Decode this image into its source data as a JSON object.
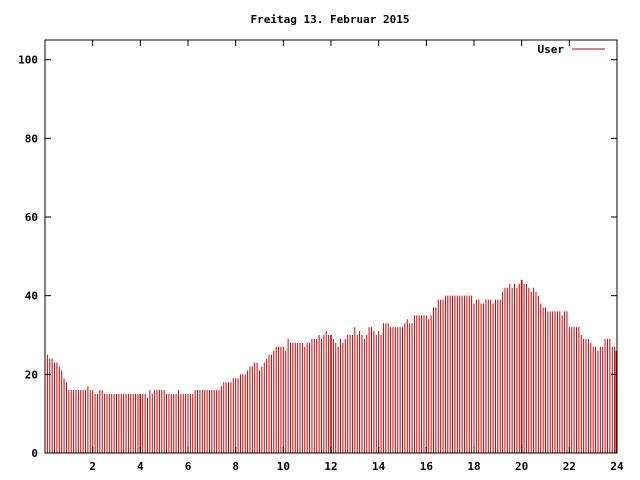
{
  "chart_data": {
    "type": "bar",
    "title": "Freitag 13. Februar 2015",
    "xlabel": "",
    "ylabel": "",
    "xlim": [
      0,
      24
    ],
    "ylim": [
      0,
      105
    ],
    "xticks": [
      2,
      4,
      6,
      8,
      10,
      12,
      14,
      16,
      18,
      20,
      22,
      24
    ],
    "yticks": [
      0,
      20,
      40,
      60,
      80,
      100
    ],
    "xtick_labels": [
      "2",
      "4",
      "6",
      "8",
      "10",
      "12",
      "14",
      "16",
      "18",
      "20",
      "22",
      "24"
    ],
    "ytick_labels": [
      "0",
      "20",
      "40",
      "60",
      "80",
      "100"
    ],
    "grid": false,
    "legend_position": "top-right",
    "series": [
      {
        "name": "User",
        "color": "#cc0000",
        "values": [
          [
            0.1,
            25
          ],
          [
            0.2,
            24
          ],
          [
            0.3,
            24
          ],
          [
            0.4,
            23
          ],
          [
            0.5,
            23
          ],
          [
            0.6,
            22
          ],
          [
            0.7,
            21
          ],
          [
            0.8,
            19
          ],
          [
            0.9,
            18
          ],
          [
            1.0,
            16
          ],
          [
            1.1,
            16
          ],
          [
            1.2,
            16
          ],
          [
            1.3,
            16
          ],
          [
            1.4,
            16
          ],
          [
            1.5,
            16
          ],
          [
            1.6,
            16
          ],
          [
            1.7,
            16
          ],
          [
            1.8,
            17
          ],
          [
            1.9,
            16
          ],
          [
            2.0,
            16
          ],
          [
            2.1,
            15
          ],
          [
            2.2,
            15
          ],
          [
            2.3,
            16
          ],
          [
            2.4,
            16
          ],
          [
            2.5,
            15
          ],
          [
            2.6,
            15
          ],
          [
            2.7,
            15
          ],
          [
            2.8,
            15
          ],
          [
            2.9,
            15
          ],
          [
            3.0,
            15
          ],
          [
            3.1,
            15
          ],
          [
            3.2,
            15
          ],
          [
            3.3,
            15
          ],
          [
            3.4,
            15
          ],
          [
            3.5,
            15
          ],
          [
            3.6,
            15
          ],
          [
            3.7,
            15
          ],
          [
            3.8,
            15
          ],
          [
            3.9,
            15
          ],
          [
            4.0,
            15
          ],
          [
            4.1,
            15
          ],
          [
            4.2,
            15
          ],
          [
            4.3,
            14
          ],
          [
            4.4,
            16
          ],
          [
            4.5,
            15
          ],
          [
            4.6,
            16
          ],
          [
            4.7,
            16
          ],
          [
            4.8,
            16
          ],
          [
            4.9,
            16
          ],
          [
            5.0,
            16
          ],
          [
            5.1,
            15
          ],
          [
            5.2,
            15
          ],
          [
            5.3,
            15
          ],
          [
            5.4,
            15
          ],
          [
            5.5,
            15
          ],
          [
            5.6,
            16
          ],
          [
            5.7,
            15
          ],
          [
            5.8,
            15
          ],
          [
            5.9,
            15
          ],
          [
            6.0,
            15
          ],
          [
            6.1,
            15
          ],
          [
            6.2,
            15
          ],
          [
            6.3,
            16
          ],
          [
            6.4,
            16
          ],
          [
            6.5,
            16
          ],
          [
            6.6,
            16
          ],
          [
            6.7,
            16
          ],
          [
            6.8,
            16
          ],
          [
            6.9,
            16
          ],
          [
            7.0,
            16
          ],
          [
            7.1,
            16
          ],
          [
            7.2,
            16
          ],
          [
            7.3,
            16
          ],
          [
            7.4,
            17
          ],
          [
            7.5,
            18
          ],
          [
            7.6,
            18
          ],
          [
            7.7,
            18
          ],
          [
            7.8,
            18
          ],
          [
            7.9,
            19
          ],
          [
            8.0,
            19
          ],
          [
            8.1,
            19
          ],
          [
            8.2,
            20
          ],
          [
            8.3,
            20
          ],
          [
            8.4,
            20
          ],
          [
            8.5,
            21
          ],
          [
            8.6,
            22
          ],
          [
            8.7,
            22
          ],
          [
            8.8,
            23
          ],
          [
            8.9,
            23
          ],
          [
            9.0,
            21
          ],
          [
            9.1,
            22
          ],
          [
            9.2,
            23
          ],
          [
            9.3,
            24
          ],
          [
            9.4,
            25
          ],
          [
            9.5,
            25
          ],
          [
            9.6,
            26
          ],
          [
            9.7,
            27
          ],
          [
            9.8,
            27
          ],
          [
            9.9,
            27
          ],
          [
            10.0,
            27
          ],
          [
            10.1,
            26
          ],
          [
            10.2,
            29
          ],
          [
            10.3,
            28
          ],
          [
            10.4,
            28
          ],
          [
            10.5,
            28
          ],
          [
            10.6,
            28
          ],
          [
            10.7,
            28
          ],
          [
            10.8,
            28
          ],
          [
            10.9,
            27
          ],
          [
            11.0,
            28
          ],
          [
            11.1,
            28
          ],
          [
            11.2,
            29
          ],
          [
            11.3,
            29
          ],
          [
            11.4,
            29
          ],
          [
            11.5,
            30
          ],
          [
            11.6,
            29
          ],
          [
            11.7,
            30
          ],
          [
            11.8,
            31
          ],
          [
            11.9,
            30
          ],
          [
            12.0,
            30
          ],
          [
            12.1,
            29
          ],
          [
            12.2,
            28
          ],
          [
            12.3,
            27
          ],
          [
            12.4,
            29
          ],
          [
            12.5,
            28
          ],
          [
            12.6,
            29
          ],
          [
            12.7,
            30
          ],
          [
            12.8,
            30
          ],
          [
            12.9,
            30
          ],
          [
            13.0,
            32
          ],
          [
            13.1,
            30
          ],
          [
            13.2,
            31
          ],
          [
            13.3,
            30
          ],
          [
            13.4,
            29
          ],
          [
            13.5,
            30
          ],
          [
            13.6,
            32
          ],
          [
            13.7,
            32
          ],
          [
            13.8,
            31
          ],
          [
            13.9,
            30
          ],
          [
            14.0,
            31
          ],
          [
            14.1,
            30
          ],
          [
            14.2,
            33
          ],
          [
            14.3,
            33
          ],
          [
            14.4,
            33
          ],
          [
            14.5,
            32
          ],
          [
            14.6,
            32
          ],
          [
            14.7,
            32
          ],
          [
            14.8,
            32
          ],
          [
            14.9,
            32
          ],
          [
            15.0,
            32
          ],
          [
            15.1,
            33
          ],
          [
            15.2,
            34
          ],
          [
            15.3,
            33
          ],
          [
            15.4,
            33
          ],
          [
            15.5,
            35
          ],
          [
            15.6,
            35
          ],
          [
            15.7,
            35
          ],
          [
            15.8,
            35
          ],
          [
            15.9,
            35
          ],
          [
            16.0,
            35
          ],
          [
            16.1,
            34
          ],
          [
            16.2,
            35
          ],
          [
            16.3,
            37
          ],
          [
            16.4,
            37
          ],
          [
            16.5,
            39
          ],
          [
            16.6,
            39
          ],
          [
            16.7,
            39
          ],
          [
            16.8,
            40
          ],
          [
            16.9,
            40
          ],
          [
            17.0,
            40
          ],
          [
            17.1,
            40
          ],
          [
            17.2,
            40
          ],
          [
            17.3,
            40
          ],
          [
            17.4,
            40
          ],
          [
            17.5,
            40
          ],
          [
            17.6,
            40
          ],
          [
            17.7,
            40
          ],
          [
            17.8,
            40
          ],
          [
            17.9,
            40
          ],
          [
            18.0,
            38
          ],
          [
            18.1,
            39
          ],
          [
            18.2,
            39
          ],
          [
            18.3,
            38
          ],
          [
            18.4,
            38
          ],
          [
            18.5,
            39
          ],
          [
            18.6,
            39
          ],
          [
            18.7,
            39
          ],
          [
            18.8,
            38
          ],
          [
            18.9,
            39
          ],
          [
            19.0,
            39
          ],
          [
            19.1,
            39
          ],
          [
            19.2,
            41
          ],
          [
            19.3,
            42
          ],
          [
            19.4,
            42
          ],
          [
            19.5,
            43
          ],
          [
            19.6,
            42
          ],
          [
            19.7,
            43
          ],
          [
            19.8,
            42
          ],
          [
            19.9,
            43
          ],
          [
            20.0,
            44
          ],
          [
            20.1,
            43
          ],
          [
            20.2,
            43
          ],
          [
            20.3,
            42
          ],
          [
            20.4,
            41
          ],
          [
            20.5,
            42
          ],
          [
            20.6,
            41
          ],
          [
            20.7,
            40
          ],
          [
            20.8,
            38
          ],
          [
            20.9,
            37
          ],
          [
            21.0,
            37
          ],
          [
            21.1,
            36
          ],
          [
            21.2,
            36
          ],
          [
            21.3,
            36
          ],
          [
            21.4,
            36
          ],
          [
            21.5,
            36
          ],
          [
            21.6,
            36
          ],
          [
            21.7,
            35
          ],
          [
            21.8,
            36
          ],
          [
            21.9,
            36
          ],
          [
            22.0,
            32
          ],
          [
            22.1,
            32
          ],
          [
            22.2,
            32
          ],
          [
            22.3,
            32
          ],
          [
            22.4,
            32
          ],
          [
            22.5,
            30
          ],
          [
            22.6,
            29
          ],
          [
            22.7,
            29
          ],
          [
            22.8,
            29
          ],
          [
            22.9,
            28
          ],
          [
            23.0,
            27
          ],
          [
            23.1,
            27
          ],
          [
            23.2,
            26
          ],
          [
            23.3,
            27
          ],
          [
            23.4,
            27
          ],
          [
            23.5,
            29
          ],
          [
            23.6,
            29
          ],
          [
            23.7,
            29
          ],
          [
            23.8,
            27
          ],
          [
            23.9,
            27
          ],
          [
            24.0,
            26
          ]
        ]
      }
    ],
    "spikes": [
      {
        "x": 4.0,
        "value": 15
      },
      {
        "x": 12.0,
        "value": 30
      },
      {
        "x": 20.0,
        "value": 44
      }
    ]
  }
}
